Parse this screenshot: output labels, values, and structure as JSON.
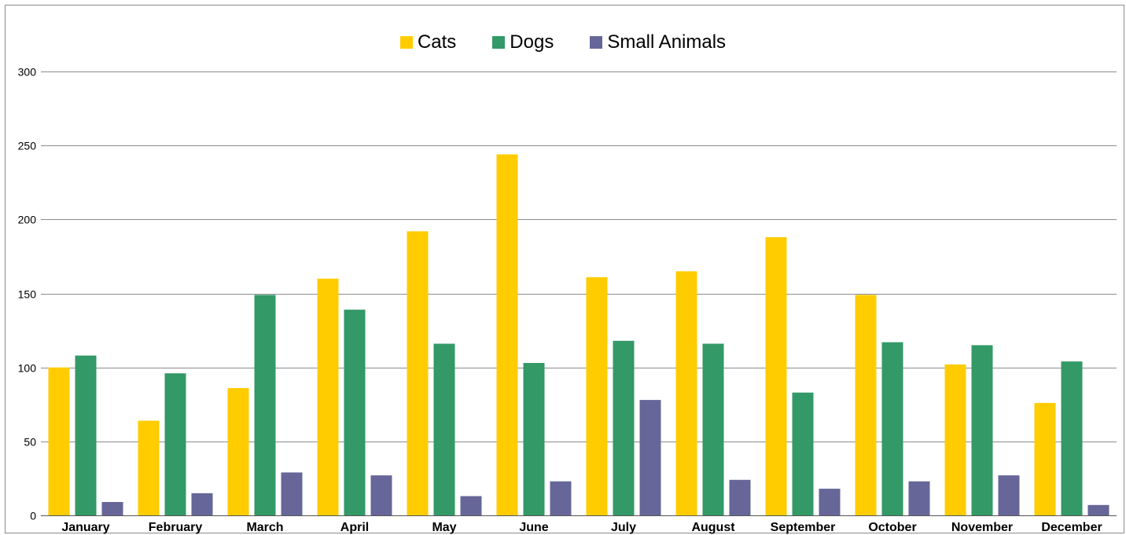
{
  "chart_data": {
    "type": "bar",
    "categories": [
      "January",
      "February",
      "March",
      "April",
      "May",
      "June",
      "July",
      "August",
      "September",
      "October",
      "November",
      "December"
    ],
    "series": [
      {
        "name": "Cats",
        "color": "#ffcc00",
        "values": [
          100,
          64,
          86,
          160,
          192,
          244,
          161,
          165,
          188,
          149,
          102,
          76
        ]
      },
      {
        "name": "Dogs",
        "color": "#339966",
        "values": [
          108,
          96,
          149,
          139,
          116,
          103,
          118,
          116,
          83,
          117,
          115,
          104
        ]
      },
      {
        "name": "Small Animals",
        "color": "#666699",
        "values": [
          9,
          15,
          29,
          27,
          13,
          23,
          78,
          24,
          18,
          23,
          27,
          7
        ]
      }
    ],
    "yticks": [
      0,
      50,
      100,
      150,
      200,
      250,
      300
    ],
    "ylim": [
      0,
      300
    ],
    "grid": true,
    "legend_position": "top"
  }
}
